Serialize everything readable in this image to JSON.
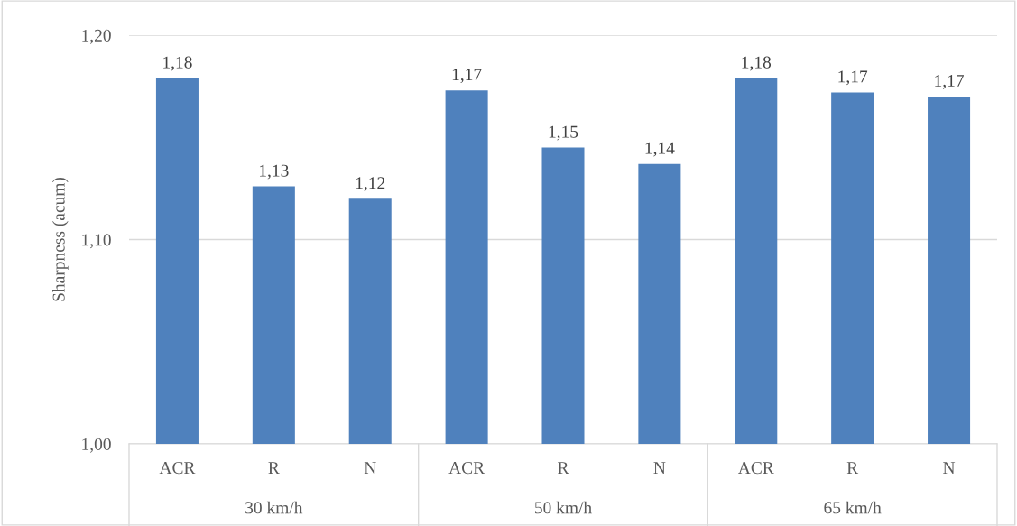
{
  "chart_data": {
    "type": "bar",
    "ylabel": "Sharpness (acum)",
    "categories": [
      "ACR",
      "R",
      "N",
      "ACR",
      "R",
      "N",
      "ACR",
      "R",
      "N"
    ],
    "values": [
      1.179,
      1.126,
      1.12,
      1.173,
      1.145,
      1.137,
      1.179,
      1.172,
      1.17
    ],
    "value_labels": [
      "1,18",
      "1,13",
      "1,12",
      "1,17",
      "1,15",
      "1,14",
      "1,18",
      "1,17",
      "1,17"
    ],
    "color": "#4f81bd",
    "ylim": [
      1.0,
      1.2
    ],
    "yticks": [
      {
        "value": 1.0,
        "label": "1,00"
      },
      {
        "value": 1.1,
        "label": "1,10"
      },
      {
        "value": 1.2,
        "label": "1,20"
      }
    ],
    "grid": "y",
    "annotations": [
      "30 km/h",
      "50 km/h",
      "65 km/h"
    ]
  }
}
